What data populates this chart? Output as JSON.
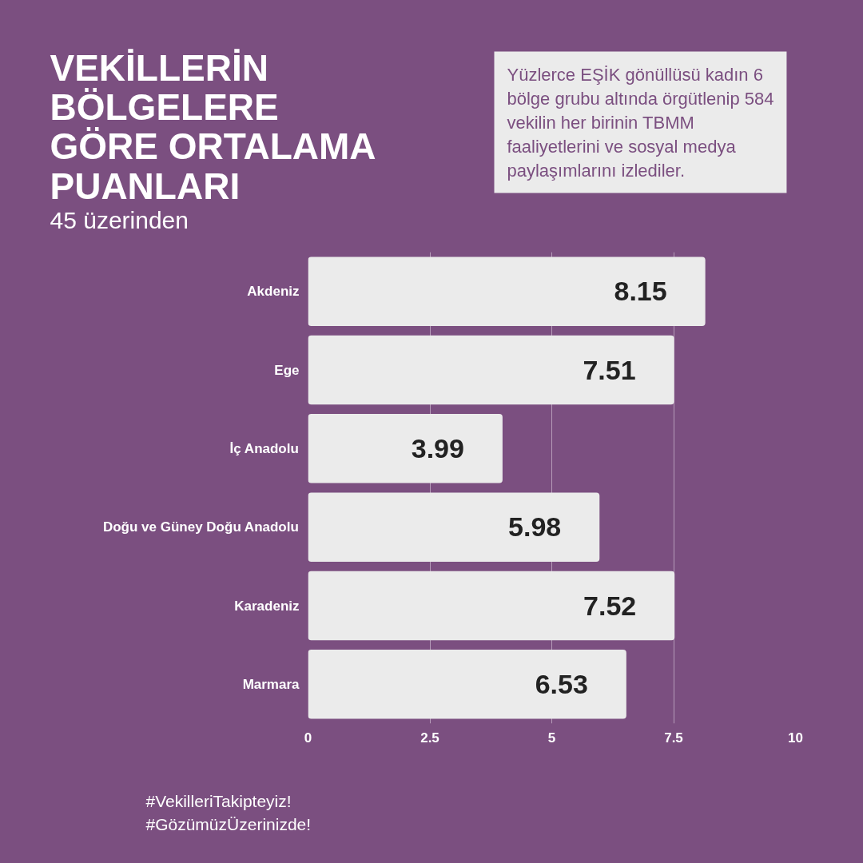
{
  "chart_data": {
    "type": "bar",
    "orientation": "horizontal",
    "title": "VEKİLLERİN\nBÖLGELERE\nGÖRE ORTALAMA\nPUANLARI",
    "subtitle": "45 üzerinden",
    "categories": [
      "Akdeniz",
      "Ege",
      "İç Anadolu",
      "Doğu ve Güney Doğu Anadolu",
      "Karadeniz",
      "Marmara"
    ],
    "values": [
      8.15,
      7.51,
      3.99,
      5.98,
      7.52,
      6.53
    ],
    "color": "#ebebeb",
    "xlim": [
      0,
      10
    ],
    "xticks": [
      0,
      2.5,
      5,
      7.5,
      10
    ],
    "grid": "x",
    "data_labels": true,
    "annotations": [
      "Yüzlerce EŞİK gönüllüsü kadın 6 bölge grubu altında örgütlenip 584 vekilin her birinin TBMM faaliyetlerini ve sosyal medya paylaşımlarını izlediler.",
      "#VekilleriTakipteyiz!\n#GözümüzÜzerinizde!"
    ]
  }
}
